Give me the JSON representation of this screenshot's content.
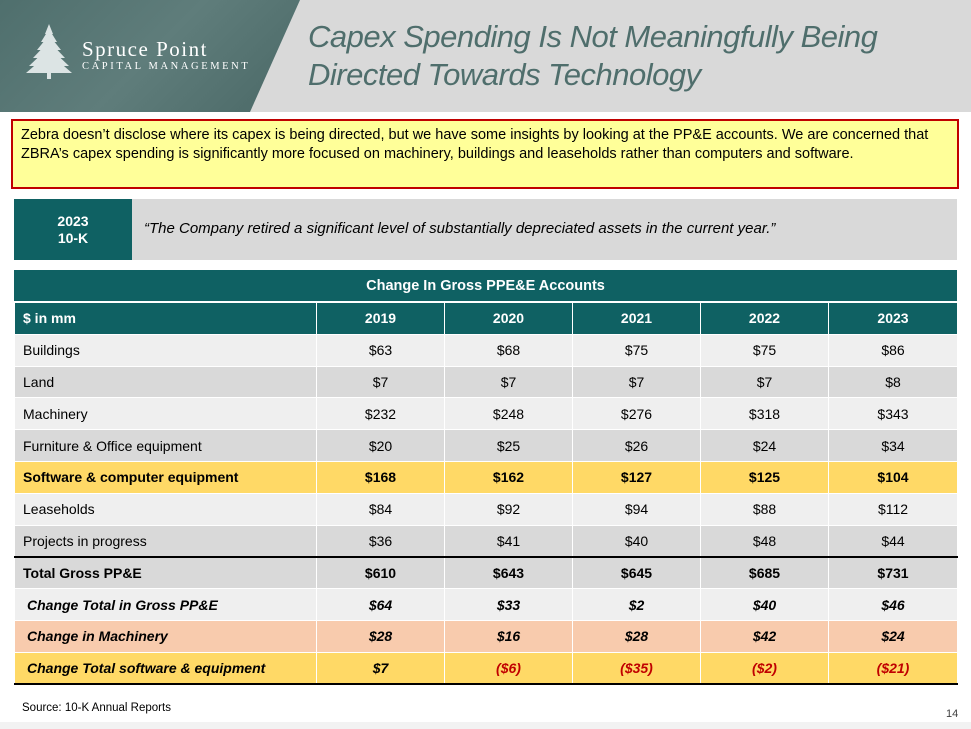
{
  "brand": {
    "name": "Spruce Point",
    "subtitle": "CAPITAL MANAGEMENT",
    "logo_icon": "spruce-tree-icon"
  },
  "title_line1": "Capex Spending Is Not Meaningfully Being",
  "title_line2": "Directed Towards Technology",
  "summary": "Zebra doesn’t disclose where its capex is being directed, but we have some insights by looking at the PP&E accounts. We are concerned that ZBRA’s capex spending is significantly more focused on machinery, buildings and leaseholds rather than computers and software.",
  "quote": {
    "tag_line1": "2023",
    "tag_line2": "10-K",
    "text": "“The Company retired a significant level of substantially depreciated assets in the current year.”"
  },
  "table": {
    "title": "Change In Gross PPE&E Accounts",
    "unit_label": "$ in mm",
    "years": [
      "2019",
      "2020",
      "2021",
      "2022",
      "2023"
    ],
    "rows": [
      {
        "label": "Buildings",
        "values": [
          "$63",
          "$68",
          "$75",
          "$75",
          "$86"
        ]
      },
      {
        "label": "Land",
        "values": [
          "$7",
          "$7",
          "$7",
          "$7",
          "$8"
        ]
      },
      {
        "label": "Machinery",
        "values": [
          "$232",
          "$248",
          "$276",
          "$318",
          "$343"
        ]
      },
      {
        "label": "Furniture & Office equipment",
        "values": [
          "$20",
          "$25",
          "$26",
          "$24",
          "$34"
        ]
      },
      {
        "label": "Software & computer equipment",
        "values": [
          "$168",
          "$162",
          "$127",
          "$125",
          "$104"
        ]
      },
      {
        "label": "Leaseholds",
        "values": [
          "$84",
          "$92",
          "$94",
          "$88",
          "$112"
        ]
      },
      {
        "label": "Projects in progress",
        "values": [
          "$36",
          "$41",
          "$40",
          "$48",
          "$44"
        ]
      },
      {
        "label": "Total Gross PP&E",
        "values": [
          "$610",
          "$643",
          "$645",
          "$685",
          "$731"
        ]
      },
      {
        "label": "Change Total in Gross PP&E",
        "values": [
          "$64",
          "$33",
          "$2",
          "$40",
          "$46"
        ]
      },
      {
        "label": "Change in Machinery",
        "values": [
          "$28",
          "$16",
          "$28",
          "$42",
          "$24"
        ]
      },
      {
        "label": "Change Total software & equipment",
        "values": [
          "$7",
          "($6)",
          "($35)",
          "($2)",
          "($21)"
        ]
      }
    ]
  },
  "source": "Source: 10-K Annual Reports",
  "page_number": "14",
  "colors": {
    "teal": "#0f6163",
    "highlight_yellow": "#ffd966",
    "highlight_peach": "#f8cbad",
    "negative_red": "#c00000"
  }
}
